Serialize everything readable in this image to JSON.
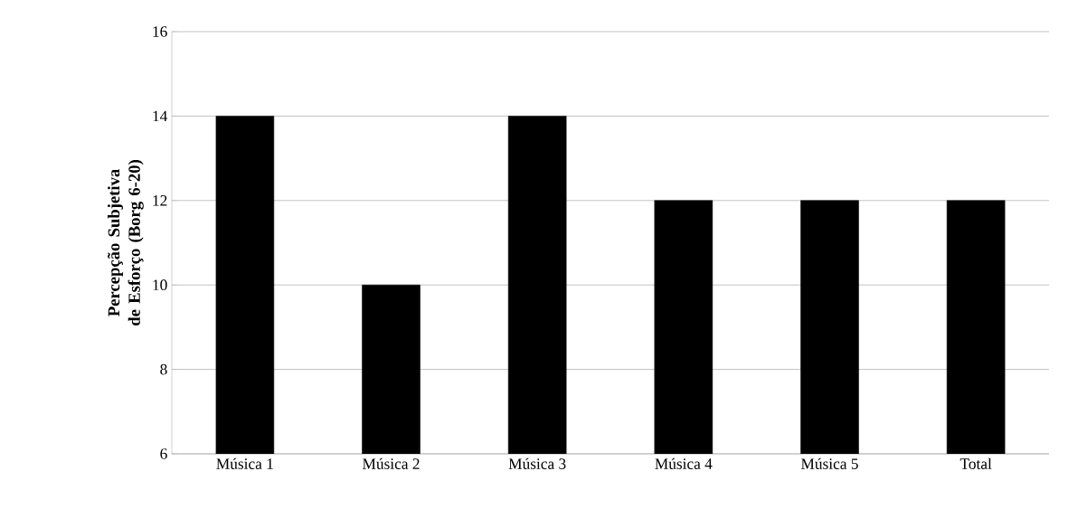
{
  "chart_data": {
    "type": "bar",
    "ylabel": "Percepção Subjetiva de Esforço (Borg 6-20)",
    "categories": [
      "Música 1",
      "Música 2",
      "Música 3",
      "Música 4",
      "Música 5",
      "Total"
    ],
    "values": [
      14,
      10,
      14,
      12,
      12,
      12
    ],
    "color": "#000000",
    "ylim": [
      6,
      16
    ],
    "yticks": [
      6,
      8,
      10,
      12,
      14,
      16
    ],
    "grid": "y"
  }
}
